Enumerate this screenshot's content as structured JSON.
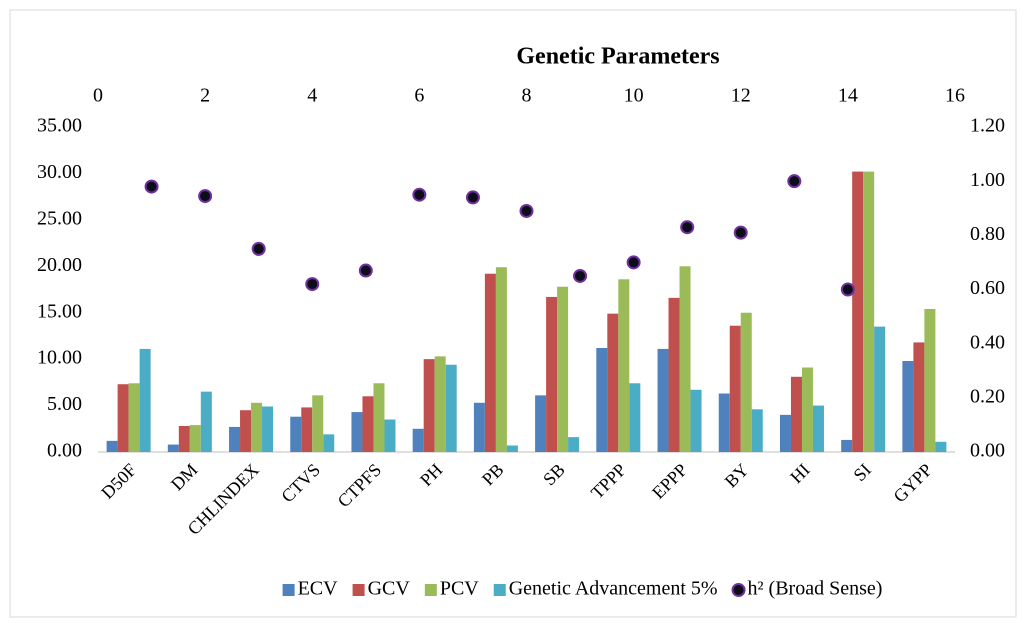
{
  "chart_data": {
    "type": "bar",
    "title": "Genetic Parameters",
    "categories": [
      "D50F",
      "DM",
      "CHLINDEX",
      "CTVS",
      "CTPFS",
      "PH",
      "PB",
      "SB",
      "TPPP",
      "EPPP",
      "BY",
      "HI",
      "SI",
      "GYPP"
    ],
    "series": [
      {
        "name": "ECV",
        "color": "#4f81bd",
        "values": [
          1.2,
          0.8,
          2.7,
          3.8,
          4.3,
          2.5,
          5.3,
          6.1,
          11.2,
          11.1,
          6.3,
          4.0,
          1.3,
          9.8
        ]
      },
      {
        "name": "GCV",
        "color": "#c0504d",
        "values": [
          7.3,
          2.8,
          4.5,
          4.8,
          6.0,
          10.0,
          19.2,
          16.7,
          14.9,
          16.6,
          13.6,
          8.1,
          30.2,
          11.8
        ]
      },
      {
        "name": "PCV",
        "color": "#9bbb59",
        "values": [
          7.4,
          2.9,
          5.3,
          6.1,
          7.4,
          10.3,
          19.9,
          17.8,
          18.6,
          20.0,
          15.0,
          9.1,
          30.2,
          15.4
        ]
      },
      {
        "name": "Genetic Advancement 5%",
        "color": "#4bacc6",
        "values": [
          11.1,
          6.5,
          4.9,
          1.9,
          3.5,
          9.4,
          0.7,
          1.6,
          7.4,
          6.7,
          4.6,
          5.0,
          13.5,
          1.1
        ]
      },
      {
        "name": "h² (Broad Sense)",
        "type": "scatter",
        "axis": "y2",
        "color": "#0d0d1a",
        "edge": "#7030a0",
        "x": [
          1,
          2,
          3,
          4,
          5,
          6,
          7,
          8,
          9,
          10,
          11,
          12,
          13,
          14
        ],
        "values": [
          0.98,
          0.945,
          0.75,
          0.62,
          0.67,
          0.95,
          0.94,
          0.89,
          0.65,
          0.7,
          0.83,
          0.81,
          1.0,
          0.6
        ]
      }
    ],
    "ylim": [
      0,
      35
    ],
    "yticks": [
      {
        "value": 0,
        "label": "0.00"
      },
      {
        "value": 5,
        "label": "5.00"
      },
      {
        "value": 10,
        "label": "10.00"
      },
      {
        "value": 15,
        "label": "15.00"
      },
      {
        "value": 20,
        "label": "20.00"
      },
      {
        "value": 25,
        "label": "25.00"
      },
      {
        "value": 30,
        "label": "30.00"
      },
      {
        "value": 35,
        "label": "35.00"
      }
    ],
    "y2lim": [
      0,
      1.2
    ],
    "y2ticks": [
      {
        "value": 0,
        "label": "0.00"
      },
      {
        "value": 0.2,
        "label": "0.20"
      },
      {
        "value": 0.4,
        "label": "0.40"
      },
      {
        "value": 0.6,
        "label": "0.60"
      },
      {
        "value": 0.8,
        "label": "0.80"
      },
      {
        "value": 1,
        "label": "1.00"
      },
      {
        "value": 1.2,
        "label": "1.20"
      }
    ],
    "xlim": [
      0,
      16
    ],
    "xticks": [
      0,
      2,
      4,
      6,
      8,
      10,
      12,
      14,
      16
    ],
    "grid": false,
    "legend": "bottom"
  }
}
